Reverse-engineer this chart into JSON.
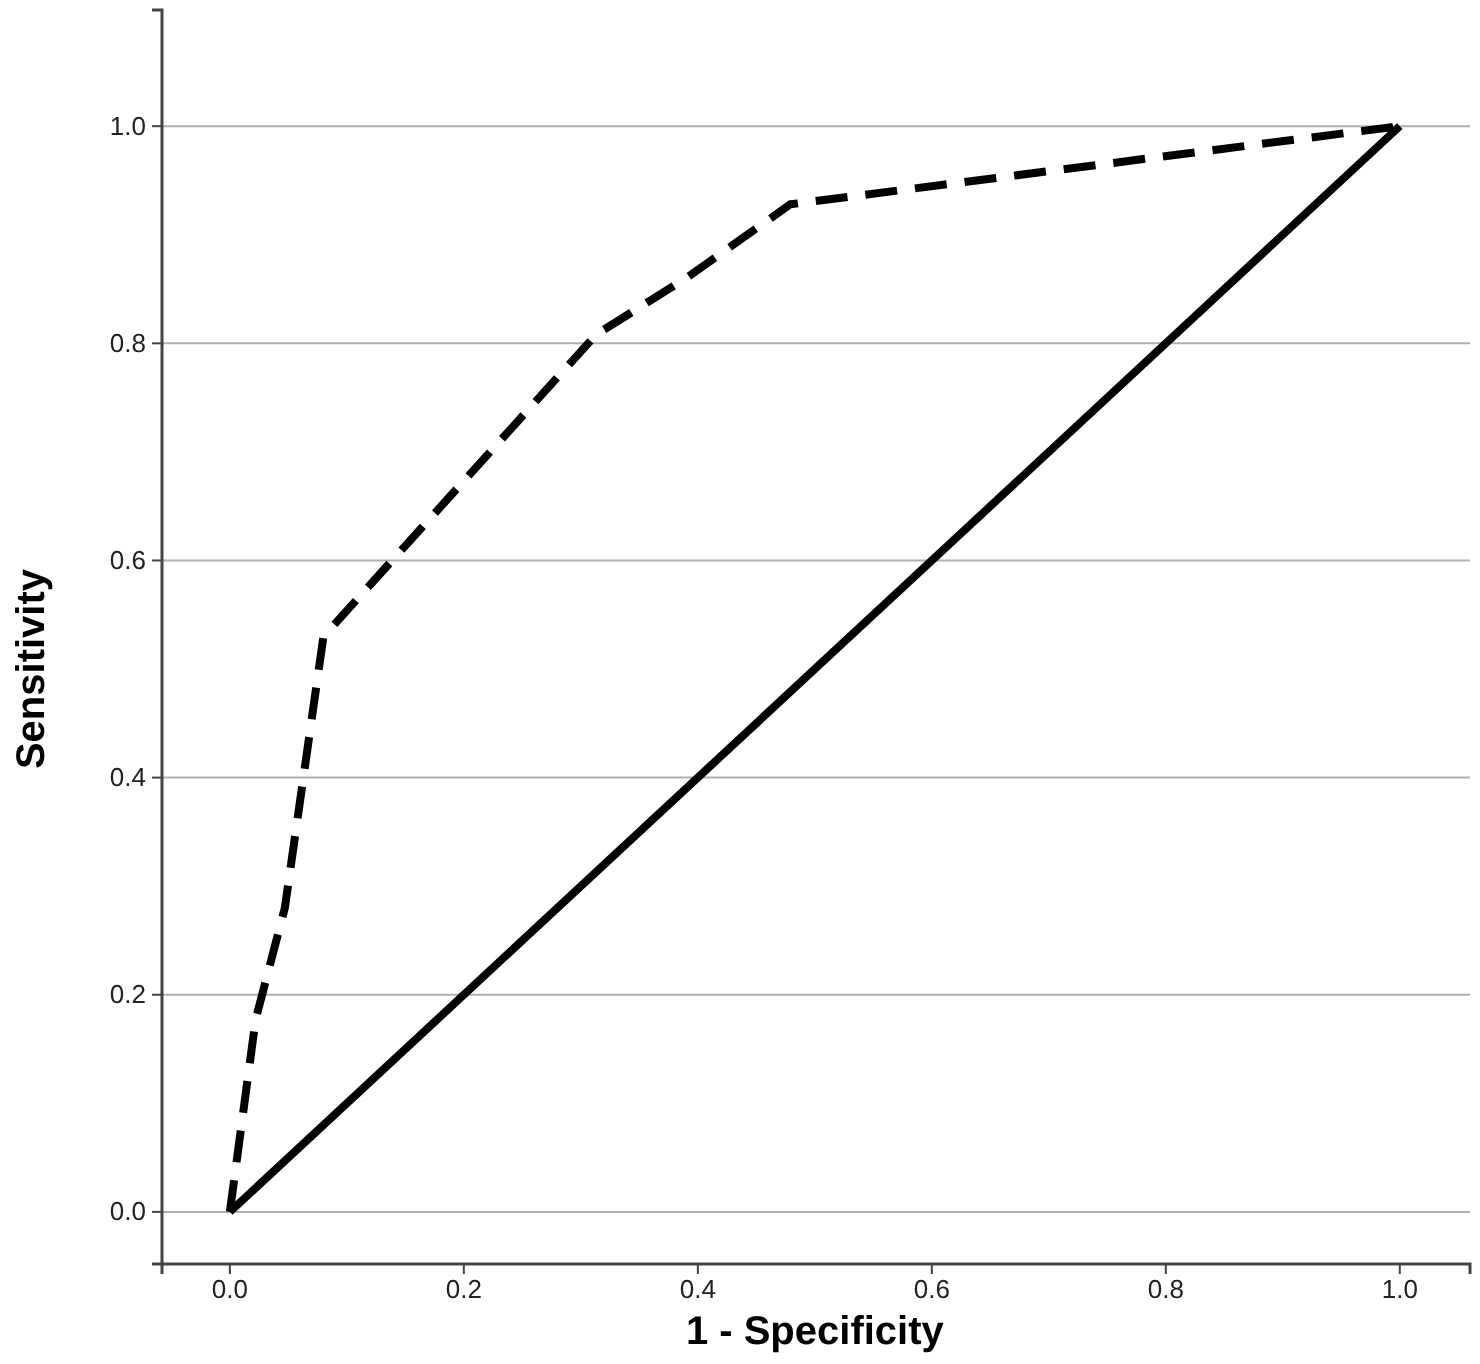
{
  "chart_data": {
    "type": "line",
    "xlabel": "1 - Specificity",
    "ylabel": "Sensitivity",
    "xlim": [
      -0.058,
      1.06
    ],
    "ylim": [
      -0.048,
      1.107
    ],
    "xticks": [
      {
        "value": 0,
        "label": "0.0"
      },
      {
        "value": 0.2,
        "label": "0.2"
      },
      {
        "value": 0.4,
        "label": "0.4"
      },
      {
        "value": 0.6,
        "label": "0.6"
      },
      {
        "value": 0.8,
        "label": "0.8"
      },
      {
        "value": 1,
        "label": "1.0"
      }
    ],
    "yticks": [
      {
        "value": 0,
        "label": "0.0"
      },
      {
        "value": 0.2,
        "label": "0.2"
      },
      {
        "value": 0.4,
        "label": "0.4"
      },
      {
        "value": 0.6,
        "label": "0.6"
      },
      {
        "value": 0.8,
        "label": "0.8"
      },
      {
        "value": 1,
        "label": "1.0"
      }
    ],
    "grid": "y",
    "series": [
      {
        "color": "#000000",
        "line_style": "dashed",
        "x": [
          0,
          0.022,
          0.047,
          0.08,
          0.313,
          0.39,
          0.479,
          1
        ],
        "values": [
          0,
          0.177,
          0.28,
          0.53,
          0.808,
          0.86,
          0.928,
          1
        ]
      },
      {
        "color": "#000000",
        "line_style": "solid",
        "x": [
          0,
          1
        ],
        "values": [
          0,
          1
        ]
      }
    ]
  }
}
